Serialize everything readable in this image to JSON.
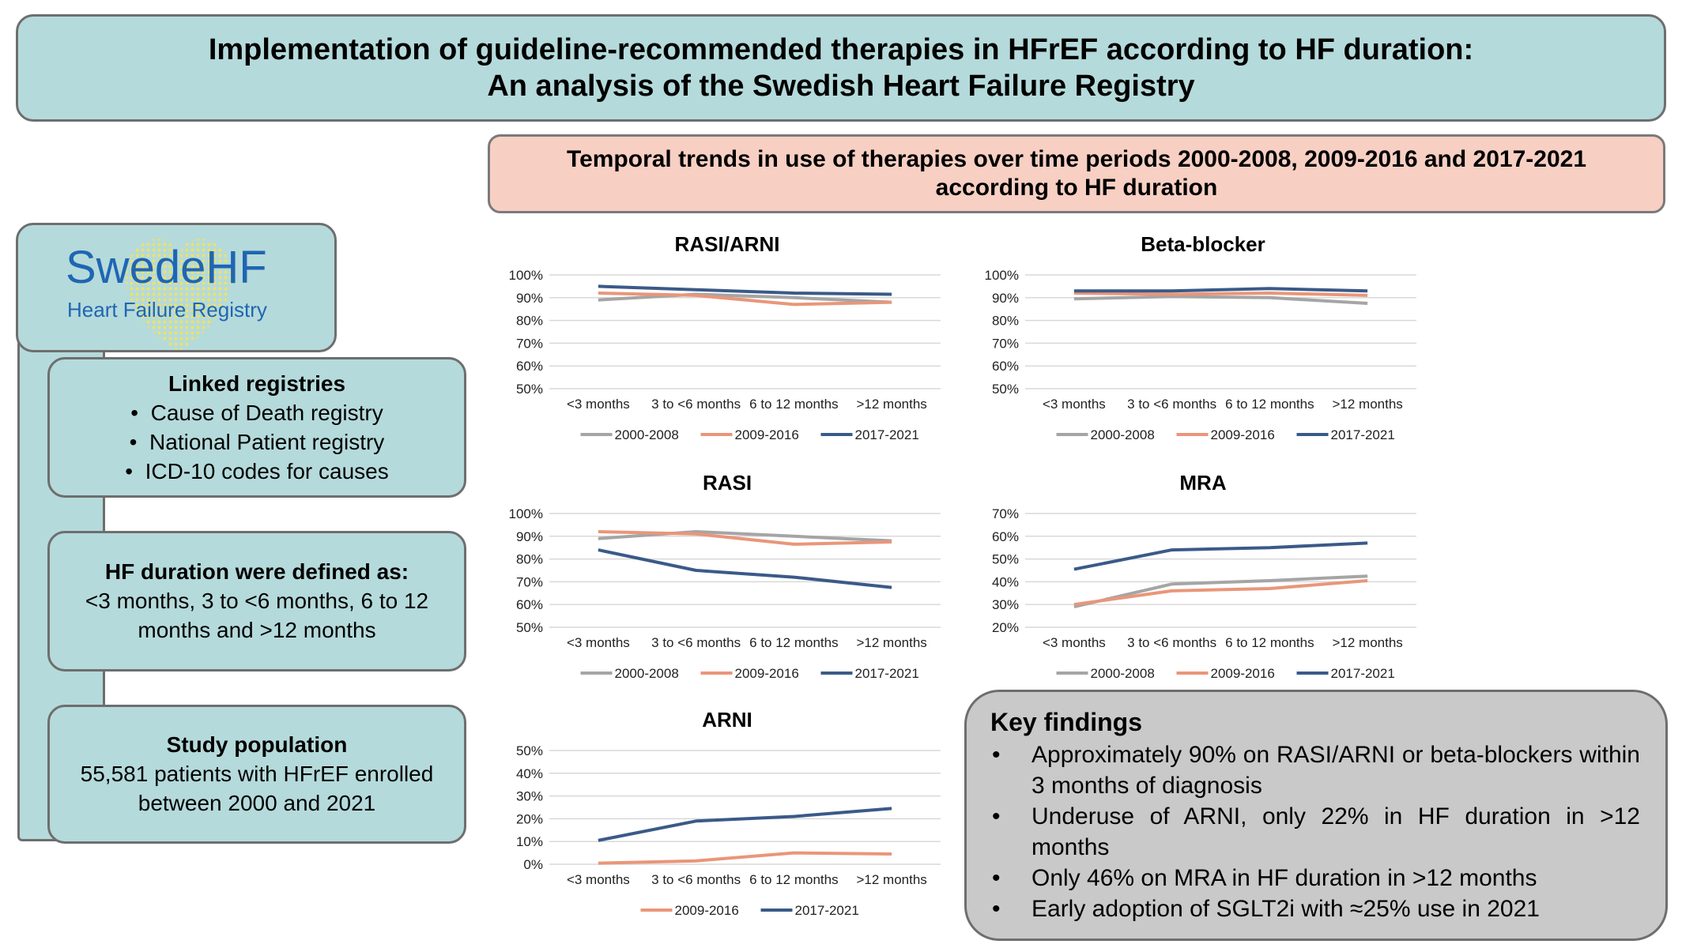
{
  "header": {
    "title_line1": "Implementation of guideline-recommended therapies in HFrEF according to HF duration:",
    "title_line2": "An analysis of the Swedish Heart Failure Registry"
  },
  "subheader": {
    "line1": "Temporal trends in use of therapies over time periods 2000-2008, 2009-2016 and 2017-2021",
    "line2": "according to HF duration"
  },
  "logo": {
    "main": "SwedeHF",
    "sub": "Heart Failure Registry"
  },
  "linked": {
    "title": "Linked registries",
    "items": [
      "Cause of Death registry",
      "National Patient registry",
      "ICD-10 codes for causes"
    ]
  },
  "duration": {
    "title": "HF duration were defined as:",
    "line1": "<3 months, 3 to <6 months, 6 to 12",
    "line2": "months and >12 months"
  },
  "population": {
    "title": "Study population",
    "line1": "55,581 patients with HFrEF enrolled",
    "line2": "between 2000 and 2021"
  },
  "findings": {
    "title": "Key findings",
    "items": [
      "Approximately 90% on RASI/ARNI or beta-blockers within 3 months of diagnosis",
      "Underuse of ARNI, only 22% in HF duration in >12 months",
      "Only 46% on MRA in HF duration in >12 months",
      "Early adoption of SGLT2i with ≈25% use in 2021"
    ]
  },
  "colors": {
    "s2000": "#a5a5a5",
    "s2009": "#e9967a",
    "s2017": "#3a5a88"
  },
  "chart_data": [
    {
      "id": "rasi-arni",
      "type": "line",
      "title": "RASI/ARNI",
      "categories": [
        "<3 months",
        "3 to <6 months",
        "6 to 12 months",
        ">12 months"
      ],
      "ylim": [
        50,
        100
      ],
      "yticks": [
        "50%",
        "60%",
        "70%",
        "80%",
        "90%",
        "100%"
      ],
      "series": [
        {
          "name": "2000-2008",
          "values": [
            89,
            91.5,
            90,
            88
          ]
        },
        {
          "name": "2009-2016",
          "values": [
            92,
            91,
            87,
            88
          ]
        },
        {
          "name": "2017-2021",
          "values": [
            95,
            93.5,
            92,
            91.5
          ]
        }
      ]
    },
    {
      "id": "beta-blocker",
      "type": "line",
      "title": "Beta-blocker",
      "categories": [
        "<3 months",
        "3 to <6 months",
        "6 to 12 months",
        ">12 months"
      ],
      "ylim": [
        50,
        100
      ],
      "yticks": [
        "50%",
        "60%",
        "70%",
        "80%",
        "90%",
        "100%"
      ],
      "series": [
        {
          "name": "2000-2008",
          "values": [
            89.5,
            90.5,
            90,
            87.5
          ]
        },
        {
          "name": "2009-2016",
          "values": [
            92,
            91.5,
            92,
            91
          ]
        },
        {
          "name": "2017-2021",
          "values": [
            93,
            93,
            94,
            93
          ]
        }
      ]
    },
    {
      "id": "rasi",
      "type": "line",
      "title": "RASI",
      "categories": [
        "<3 months",
        "3 to <6 months",
        "6 to 12 months",
        ">12 months"
      ],
      "ylim": [
        50,
        100
      ],
      "yticks": [
        "50%",
        "60%",
        "70%",
        "80%",
        "90%",
        "100%"
      ],
      "series": [
        {
          "name": "2000-2008",
          "values": [
            89,
            92,
            90,
            88
          ]
        },
        {
          "name": "2009-2016",
          "values": [
            92,
            91,
            86.5,
            87.5
          ]
        },
        {
          "name": "2017-2021",
          "values": [
            84,
            75,
            72,
            67.5
          ]
        }
      ]
    },
    {
      "id": "mra",
      "type": "line",
      "title": "MRA",
      "categories": [
        "<3 months",
        "3 to <6 months",
        "6 to 12 months",
        ">12 months"
      ],
      "ylim": [
        20,
        70
      ],
      "yticks": [
        "20%",
        "30%",
        "40%",
        "50%",
        "60%",
        "70%"
      ],
      "series": [
        {
          "name": "2000-2008",
          "values": [
            29,
            39,
            40.5,
            42.5
          ]
        },
        {
          "name": "2009-2016",
          "values": [
            30,
            36,
            37,
            40.5
          ]
        },
        {
          "name": "2017-2021",
          "values": [
            45.5,
            54,
            55,
            57
          ]
        }
      ]
    },
    {
      "id": "arni",
      "type": "line",
      "title": "ARNI",
      "categories": [
        "<3 months",
        "3 to <6 months",
        "6 to 12 months",
        ">12 months"
      ],
      "ylim": [
        0,
        50
      ],
      "yticks": [
        "0%",
        "10%",
        "20%",
        "30%",
        "40%",
        "50%"
      ],
      "series": [
        {
          "name": "2009-2016",
          "values": [
            0.5,
            1.5,
            5,
            4.5
          ]
        },
        {
          "name": "2017-2021",
          "values": [
            10.5,
            19,
            21,
            24.5
          ]
        }
      ]
    }
  ]
}
